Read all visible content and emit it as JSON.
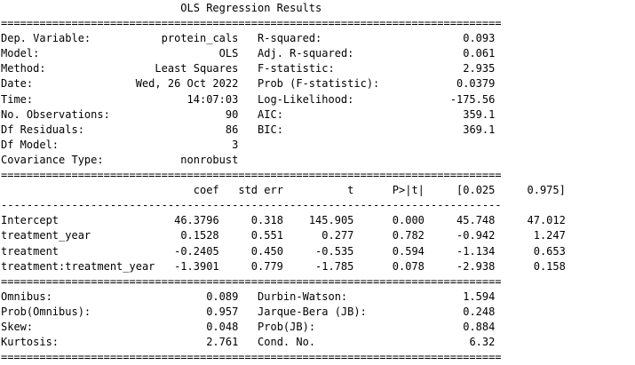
{
  "title": "OLS Regression Results",
  "summary": {
    "left": [
      [
        "Dep. Variable:",
        "protein_cals"
      ],
      [
        "Model:",
        "OLS"
      ],
      [
        "Method:",
        "Least Squares"
      ],
      [
        "Date:",
        "Wed, 26 Oct 2022"
      ],
      [
        "Time:",
        "14:07:03"
      ],
      [
        "No. Observations:",
        "90"
      ],
      [
        "Df Residuals:",
        "86"
      ],
      [
        "Df Model:",
        "3"
      ],
      [
        "Covariance Type:",
        "nonrobust"
      ]
    ],
    "right": [
      [
        "R-squared:",
        "0.093"
      ],
      [
        "Adj. R-squared:",
        "0.061"
      ],
      [
        "F-statistic:",
        "2.935"
      ],
      [
        "Prob (F-statistic):",
        "0.0379"
      ],
      [
        "Log-Likelihood:",
        "-175.56"
      ],
      [
        "AIC:",
        "359.1"
      ],
      [
        "BIC:",
        "369.1"
      ]
    ]
  },
  "coef_table": {
    "headers": [
      "coef",
      "std err",
      "t",
      "P>|t|",
      "[0.025",
      "0.975]"
    ],
    "rows": [
      [
        "Intercept",
        "46.3796",
        "0.318",
        "145.905",
        "0.000",
        "45.748",
        "47.012"
      ],
      [
        "treatment_year",
        "0.1528",
        "0.551",
        "0.277",
        "0.782",
        "-0.942",
        "1.247"
      ],
      [
        "treatment",
        "-0.2405",
        "0.450",
        "-0.535",
        "0.594",
        "-1.134",
        "0.653"
      ],
      [
        "treatment:treatment_year",
        "-1.3901",
        "0.779",
        "-1.785",
        "0.078",
        "-2.938",
        "0.158"
      ]
    ]
  },
  "diagnostics": {
    "left": [
      [
        "Omnibus:",
        "0.089"
      ],
      [
        "Prob(Omnibus):",
        "0.957"
      ],
      [
        "Skew:",
        "0.048"
      ],
      [
        "Kurtosis:",
        "2.761"
      ]
    ],
    "right": [
      [
        "Durbin-Watson:",
        "1.594"
      ],
      [
        "Jarque-Bera (JB):",
        "0.248"
      ],
      [
        "Prob(JB):",
        "0.884"
      ],
      [
        "Cond. No.",
        "6.32"
      ]
    ]
  }
}
